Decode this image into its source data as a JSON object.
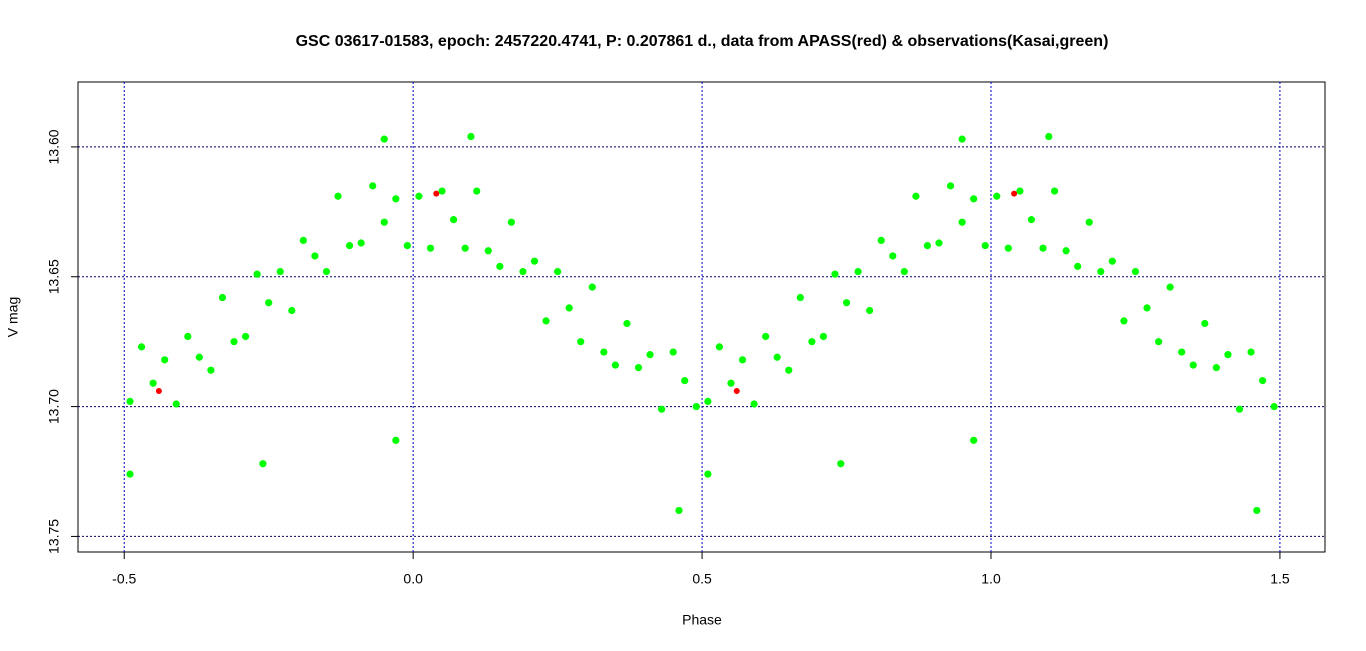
{
  "chart_data": {
    "type": "scatter",
    "title": "GSC 03617-01583, epoch: 2457220.4741, P: 0.207861 d., data from APASS(red) & observations(Kasai,green)",
    "x_label": "Phase",
    "y_label": "V mag",
    "xlim": [
      -0.58,
      1.578
    ],
    "ylim": [
      13.575,
      13.756
    ],
    "y_inverted": true,
    "grid": true,
    "xticks": [
      -0.5,
      {
        "value": 0,
        "label": "0.0"
      },
      0.5,
      {
        "value": 1,
        "label": "1.0"
      },
      1.5
    ],
    "yticks": [
      {
        "value": 13.6,
        "label": "13.60"
      },
      13.65,
      {
        "value": 13.7,
        "label": "13.70"
      },
      13.75
    ],
    "series": [
      {
        "name": "observations(Kasai,green)",
        "color": "#00ff00",
        "x": [
          -0.49,
          -0.47,
          -0.45,
          -0.43,
          -0.41,
          -0.39,
          -0.37,
          -0.35,
          -0.33,
          -0.31,
          -0.29,
          -0.27,
          -0.25,
          -0.23,
          -0.21,
          -0.19,
          -0.17,
          -0.15,
          -0.13,
          -0.11,
          -0.09,
          -0.07,
          -0.05,
          -0.03,
          -0.01,
          0.01,
          0.03,
          0.05,
          0.07,
          0.09,
          0.11,
          0.13,
          0.15,
          0.17,
          0.19,
          0.21,
          0.23,
          0.25,
          0.27,
          0.29,
          0.31,
          0.33,
          0.35,
          0.37,
          0.39,
          0.41,
          0.43,
          0.45,
          0.47,
          0.49,
          -0.49,
          -0.26,
          -0.03,
          0.46,
          0.1,
          -0.05,
          0.51,
          0.53,
          0.55,
          0.57,
          0.59,
          0.61,
          0.63,
          0.65,
          0.67,
          0.69,
          0.71,
          0.73,
          0.75,
          0.77,
          0.79,
          0.81,
          0.83,
          0.85,
          0.87,
          0.89,
          0.91,
          0.93,
          0.95,
          0.97,
          0.99,
          1.01,
          1.03,
          1.05,
          1.07,
          1.09,
          1.11,
          1.13,
          1.15,
          1.17,
          1.19,
          1.21,
          1.23,
          1.25,
          1.27,
          1.29,
          1.31,
          1.33,
          1.35,
          1.37,
          1.39,
          1.41,
          1.43,
          1.45,
          1.47,
          1.49,
          0.51,
          0.74,
          0.97,
          1.46,
          1.1,
          0.95
        ],
        "values": [
          13.698,
          13.677,
          13.691,
          13.682,
          13.699,
          13.673,
          13.681,
          13.686,
          13.658,
          13.675,
          13.673,
          13.649,
          13.66,
          13.648,
          13.663,
          13.636,
          13.642,
          13.648,
          13.619,
          13.638,
          13.637,
          13.615,
          13.629,
          13.62,
          13.638,
          13.619,
          13.639,
          13.617,
          13.628,
          13.639,
          13.617,
          13.64,
          13.646,
          13.629,
          13.648,
          13.644,
          13.667,
          13.648,
          13.662,
          13.675,
          13.654,
          13.679,
          13.684,
          13.668,
          13.685,
          13.68,
          13.701,
          13.679,
          13.69,
          13.7,
          13.726,
          13.722,
          13.713,
          13.74,
          13.596,
          13.597,
          13.698,
          13.677,
          13.691,
          13.682,
          13.699,
          13.673,
          13.681,
          13.686,
          13.658,
          13.675,
          13.673,
          13.649,
          13.66,
          13.648,
          13.663,
          13.636,
          13.642,
          13.648,
          13.619,
          13.638,
          13.637,
          13.615,
          13.629,
          13.62,
          13.638,
          13.619,
          13.639,
          13.617,
          13.628,
          13.639,
          13.617,
          13.64,
          13.646,
          13.629,
          13.648,
          13.644,
          13.667,
          13.648,
          13.662,
          13.675,
          13.654,
          13.679,
          13.684,
          13.668,
          13.685,
          13.68,
          13.701,
          13.679,
          13.69,
          13.7,
          13.726,
          13.722,
          13.713,
          13.74,
          13.596,
          13.597
        ]
      },
      {
        "name": "APASS(red)",
        "color": "#ff0000",
        "x": [
          -0.44,
          0.04,
          0.56,
          1.04
        ],
        "values": [
          13.694,
          13.618,
          13.694,
          13.618
        ]
      }
    ]
  }
}
